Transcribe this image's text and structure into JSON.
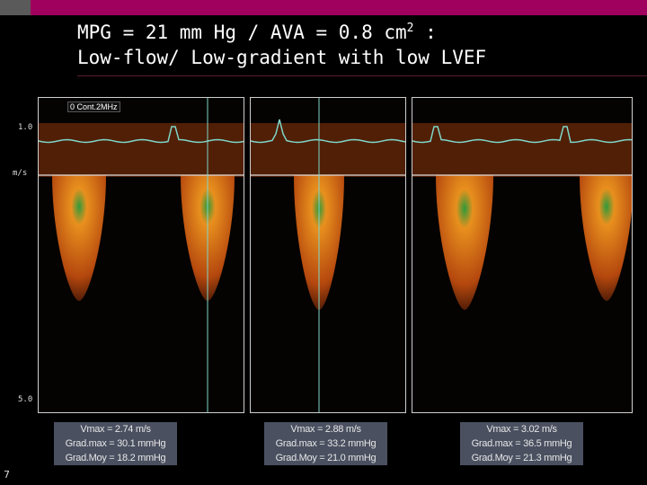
{
  "slide": {
    "title_line1_prefix": "MPG = 21 mm Hg / AVA = 0.8 cm",
    "title_line1_sup": "2",
    "title_line1_suffix": " :",
    "title_line2": "Low-flow/ Low-gradient with low LVEF",
    "slide_number": "7"
  },
  "doppler": {
    "probe_label": "0 Cont.2MHz",
    "scale_top": "1.0",
    "scale_unit": "m/s",
    "scale_bottom": "5.0",
    "measurements": [
      {
        "vmax": "Vmax = 2.74 m/s",
        "gradmax": "Grad.max = 30.1 mmHg",
        "gradmoy": "Grad.Moy = 18.2 mmHg"
      },
      {
        "vmax": "Vmax = 2.88 m/s",
        "gradmax": "Grad.max = 33.2 mmHg",
        "gradmoy": "Grad.Moy = 21.0 mmHg"
      },
      {
        "vmax": "Vmax = 3.02 m/s",
        "gradmax": "Grad.max = 36.5 mmHg",
        "gradmoy": "Grad.Moy = 21.3 mmHg"
      }
    ]
  },
  "colors": {
    "accent_bar": "#a0005e",
    "ecg": "#7fd6c8",
    "doppler": "#e0781c"
  }
}
